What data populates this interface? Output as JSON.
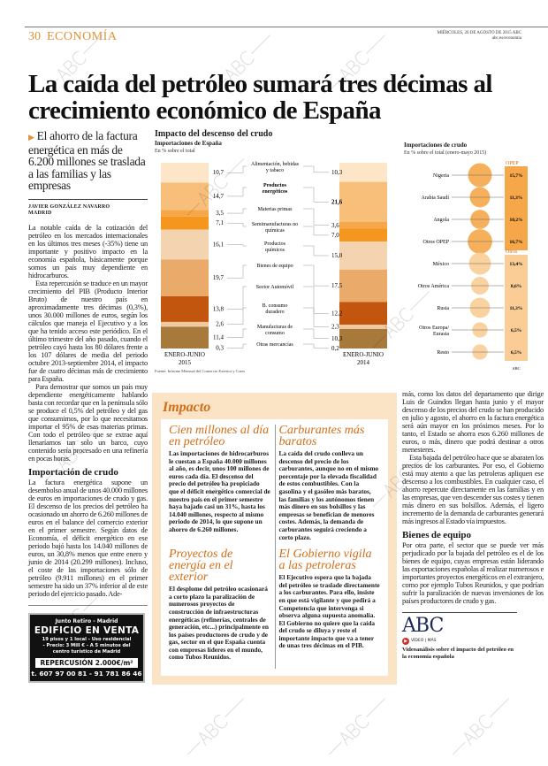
{
  "header": {
    "page_number": "30",
    "section": "ECONOMÍA",
    "date": "MIÉRCOLES, 26 DE AGOSTO DE 2015   ABC",
    "url": "abc.es/economia"
  },
  "headline": "La caída del petróleo sumará tres décimas al crecimiento económico de España",
  "subhead": "El ahorro de la factura energética en más de 6.200 millones se traslada a las familias y las empresas",
  "byline": {
    "author": "JAVIER GONZÁLEZ NAVARRO",
    "place": "MADRID"
  },
  "article": {
    "left_paragraphs": [
      "La notable caída de la cotización del petróleo en los mercados internacionales en los últimos tres meses (-35%) tiene un importante y positivo impacto en la economía española, básicamente porque somos un país muy dependiente en hidrocarburos.",
      "Esta repercusión se traduce en un mayor crecimiento del PIB (Producto Interior Bruto) de nuestro país en aproximadamente tres décimas (0,3%), unos 30.000 millones de euros, según los cálculos que maneja el Ejecutivo y a los que ha tenido acceso este periódico. En el último trimestre del año pasado, cuando el petróleo cayó hasta los 80 dólares frente a los 107 dólares de media del periodo octubre 2013-septiembre 2014, el impacto fue de cuatro décimas más de crecimiento para España.",
      "Para demostrar que somos un país muy dependiente energéticamente hablando basta con recordar que en la península sólo se produce el 0,5% del petróleo y del gas que consumimos, por lo que necesitamos importar el 95% de esas materias primas. Con todo el petróleo que se extrae aquí llenaríamos tan solo un barco, cuyo contenido sería procesado en una refinería en pocas horas."
    ],
    "heading1": "Importación de crudo",
    "left_paragraph_after": "La factura energética supone un desembolso anual de unos 40.000 millones de euros en importaciones de crudo y gas. El descenso de los precios del petróleo ha ocasionado un ahorro de 6.260 millones de euros en el balance del comercio exterior en el primer semestre. Según datos de Economía, el déficit energético en ese periodo bajó hasta los 14.040 millones de euros, un 30,8% menos que entre enero y junio de 2014 (20.299 millones). Incluso, el coste de las importaciones sólo de petróleo (9.911 millones) en el primer semestre ha sido un 37% inferior al de este periodo del ejercicio pasado. Ade-",
    "right_paragraphs": [
      "más, como los datos del departamento que dirige Luis de Guindos llegan hasta junio y el mayor descenso de los precios del crudo se han producido en julio y agosto, el ahorro en la factura energética será aún mayor en los próximos meses. Por lo tanto, el Estado se ahorra esos 6.260 millones de euros, o más, dinero que podrá destinar a otros menesteres.",
      "Esta bajada del petróleo hace que se abaraten los precios de los carburantes. Por eso, el Gobierno está muy atento a que las petroleras apliquen ese descenso a los combustibles. En cualquier caso, el ahorro repercute directamente en las familias y en las empresas, que ven descender sus costes y tienen más dinero en sus bolsillos. Además, el ligero incremento de la demanda de carburantes generará más ingresos al Estado vía impuestos."
    ],
    "heading2": "Bienes de equipo",
    "right_paragraph_after": "Por otra parte, el sector que se puede ver más perjudicado por la bajada del petróleo es el de los bienes de equipo, cuyas empresas están liderando las exportaciones españolas al realizar numerosos e importantes proyectos energéticos en el extranjero, como por ejemplo Tubos Reunidos, y que podrían sufrir la paralización de nuevas inversiones de los países productores de crudo y gas."
  },
  "ad": {
    "line1": "Junto Retiro - Madrid",
    "line2": "EDIFICIO EN VENTA",
    "line3": "19 pisos y 1 local - Uso residencial",
    "line4": "- Precio: 3 Mill € - A 5 minutos del",
    "line5": "centro turístico de Madrid",
    "line6": "REPERCUSIÓN 2.000€/m²",
    "line7": "t. 607 97 00 81 - 91 781 86 46"
  },
  "impacto": {
    "title": "Impacto",
    "boxes": [
      {
        "title": "Cien millones al día en petróleo",
        "text": "Las importaciones de hidrocarburos le cuestan a España 40.000 millones al año, es decir, unos 100 millones de euros cada día. El descenso del precio del petróleo ha propiciado que el déficit energético comercial de nuestro país en el primer semestre haya bajado casi un 31%, hasta los 14.040 millones, respecto al mismo periodo de 2014, lo que supone un ahorro de 6.260 millones."
      },
      {
        "title": "Carburantes más baratos",
        "text": "La caída del crudo conlleva un descenso del precio de los carburantes, aunque no en el mismo porcentaje por la elevada fiscalidad de estos combustibles. Con la gasolina y el gasóleo más baratos, las familias y los autónomos tienen más dinero en sus bolsillos y las empresas se benefician de menores costes. Además, la demanda de carburantes seguirá creciendo a corto plazo."
      },
      {
        "title": "Proyectos de energía en el exterior",
        "text": "El desplome del petróleo ocasionará a corto plazo la paralización de numerosos proyectos de construcción de infraestructuras energéticas (refinerías, centrales de generación, etc...) principalmente en los países productores de crudo y de gas, sector en el que España cuenta con empresas líderes en el mundo, como Tubos Reunidos."
      },
      {
        "title": "El Gobierno vigila a las petroleras",
        "text": "El Ejecutivo espera que la bajada del petróleo se traslade directamente a los carburantes. Para ello, insiste en que está vigilante y que pedirá a Competencia que intervenga si observa alguna supuesta anomalía. El Gobierno no quiere que la caída del crudo se diluya y reste el importante impacto que va a tener de unas tres décimas en el PIB."
      }
    ]
  },
  "video": {
    "logo": "ABC",
    "badge": "VÍDEO | MÁS",
    "caption": "Videoanálisis sobre el impacto del petróleo en la economía española"
  },
  "watermark": "ABC",
  "chart_data": [
    {
      "type": "stacked-bar",
      "title": "Impacto del descenso del crudo",
      "subtitle": "Importaciones de España",
      "unit": "En % sobre el total",
      "categories": [
        "Alimentación, bebidas y tabaco",
        "Productos energéticos",
        "Materias primas",
        "Semimanufacturas no químicas",
        "Productos químicos",
        "Bienes de equipo",
        "Sector Automóvil",
        "B. consumo duradero",
        "Manufacturas de consumo",
        "Otras mercancías"
      ],
      "colors": [
        "#fde6c8",
        "#f8bf7a",
        "#f6a74a",
        "#f5961f",
        "#f4d3b0",
        "#e9aa6a",
        "#c2560f",
        "#efc9a0",
        "#a77a3c",
        "#8c6a3a"
      ],
      "series": [
        {
          "name": "ENERO-JUNIO 2015",
          "values": [
            10.7,
            14.7,
            3.5,
            7.1,
            16.1,
            19.7,
            13.8,
            2.6,
            11.4,
            0.3
          ],
          "labels": [
            "10,7",
            "14,7",
            "3,5",
            "7,1",
            "16,1",
            "19,7",
            "13,8",
            "2,6",
            "11,4",
            "0,3"
          ]
        },
        {
          "name": "ENERO-JUNIO 2014",
          "values": [
            10.3,
            21.6,
            3.6,
            7.0,
            15.0,
            17.5,
            12.2,
            2.3,
            10.3,
            0.2
          ],
          "labels": [
            "10,3",
            "21,6",
            "3,6",
            "7,0",
            "15,0",
            "17,5",
            "12,2",
            "2,3",
            "10,3",
            "0,2"
          ]
        }
      ],
      "source": "Fuente: Informe Mensual del Comercio Exterior y Cores"
    },
    {
      "type": "bubble",
      "title": "Importaciones de crudo",
      "subtitle": "En % sobre el total (enero-mayo 2015)",
      "groups": [
        {
          "name": "OPEP",
          "color": "#f5a74a"
        },
        {
          "name": "Otros",
          "color": "#f9cd95"
        }
      ],
      "categories": [
        "Nigeria",
        "Arabia Saudí",
        "Angola",
        "Otros OPEP",
        "México",
        "Otros América",
        "Rusia",
        "Otros Europa/ Eurasia",
        "Resto"
      ],
      "group_of": [
        0,
        0,
        0,
        0,
        1,
        1,
        1,
        1,
        1
      ],
      "values": [
        15.7,
        11.3,
        10.2,
        16.7,
        13.4,
        8.6,
        11.3,
        6.5,
        6.5
      ],
      "labels": [
        "15,7%",
        "11,3%",
        "10,2%",
        "16,7%",
        "13,4%",
        "8,6%",
        "11,3%",
        "6,5%",
        "6,5%"
      ],
      "credit": "ABC"
    }
  ]
}
